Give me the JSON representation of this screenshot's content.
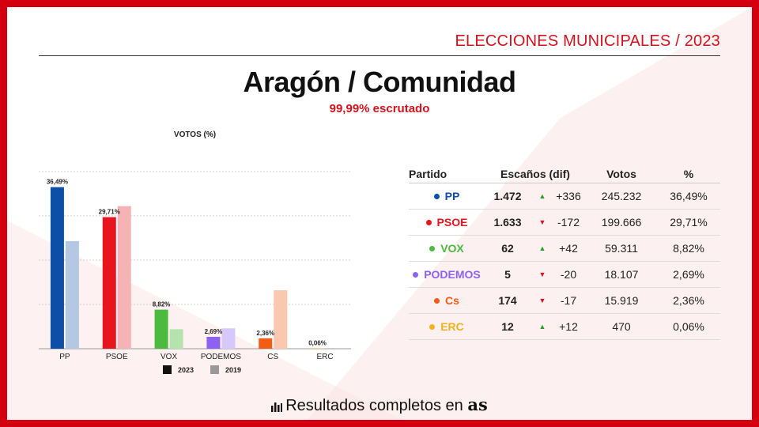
{
  "header": {
    "election_label": "ELECCIONES MUNICIPALES / 2023"
  },
  "title": "Aragón / Comunidad",
  "subtitle": "99,99% escrutado",
  "colors": {
    "brand_red": "#d2131d",
    "background_red": "#d40010"
  },
  "chart_data": {
    "type": "bar",
    "title": "VOTOS (%)",
    "categories": [
      "PP",
      "PSOE",
      "VOX",
      "PODEMOS",
      "CS",
      "ERC"
    ],
    "series": [
      {
        "name": "2023",
        "values": [
          36.49,
          29.71,
          8.82,
          2.69,
          2.36,
          0.06
        ]
      },
      {
        "name": "2019",
        "values": [
          24.3,
          32.2,
          4.4,
          4.6,
          13.2,
          0.0
        ]
      }
    ],
    "data_labels": [
      "36,49%",
      "29,71%",
      "8,82%",
      "2,69%",
      "2,36%",
      "0,06%"
    ],
    "party_colors": [
      "#0d4fa8",
      "#e8141e",
      "#4cba3c",
      "#8d62f0",
      "#f25c16",
      "#f0b21e"
    ],
    "party_colors_2019": [
      "#b4c8e3",
      "#f6b3b6",
      "#b5e3ae",
      "#d6c8fa",
      "#f9c8ae",
      "#f8e2a8"
    ],
    "legend_colors": [
      "#111111",
      "#999999"
    ],
    "ylim": [
      0,
      40
    ],
    "grid": true,
    "legend": "bottom"
  },
  "table": {
    "headers": {
      "party": "Partido",
      "seats": "Escaños (dif)",
      "votes": "Votos",
      "pct": "%"
    },
    "rows": [
      {
        "party": "PP",
        "color": "#0d4fa8",
        "seats": "1.472",
        "arrow": "▲",
        "arrow_color": "#2a9d2a",
        "diff": "+336",
        "votes": "245.232",
        "pct": "36,49%"
      },
      {
        "party": "PSOE",
        "color": "#e8141e",
        "seats": "1.633",
        "arrow": "▼",
        "arrow_color": "#d2131d",
        "diff": "-172",
        "votes": "199.666",
        "pct": "29,71%"
      },
      {
        "party": "VOX",
        "color": "#4cba3c",
        "seats": "62",
        "arrow": "▲",
        "arrow_color": "#2a9d2a",
        "diff": "+42",
        "votes": "59.311",
        "pct": "8,82%"
      },
      {
        "party": "PODEMOS",
        "color": "#8d62f0",
        "seats": "5",
        "arrow": "▼",
        "arrow_color": "#d2131d",
        "diff": "-20",
        "votes": "18.107",
        "pct": "2,69%"
      },
      {
        "party": "Cs",
        "color": "#f25c16",
        "seats": "174",
        "arrow": "▼",
        "arrow_color": "#d2131d",
        "diff": "-17",
        "votes": "15.919",
        "pct": "2,36%"
      },
      {
        "party": "ERC",
        "color": "#f0b21e",
        "seats": "12",
        "arrow": "▲",
        "arrow_color": "#2a9d2a",
        "diff": "+12",
        "votes": "470",
        "pct": "0,06%"
      }
    ]
  },
  "footer": {
    "text": "Resultados completos en",
    "brand": "as",
    "icon": "bar-chart-icon"
  }
}
